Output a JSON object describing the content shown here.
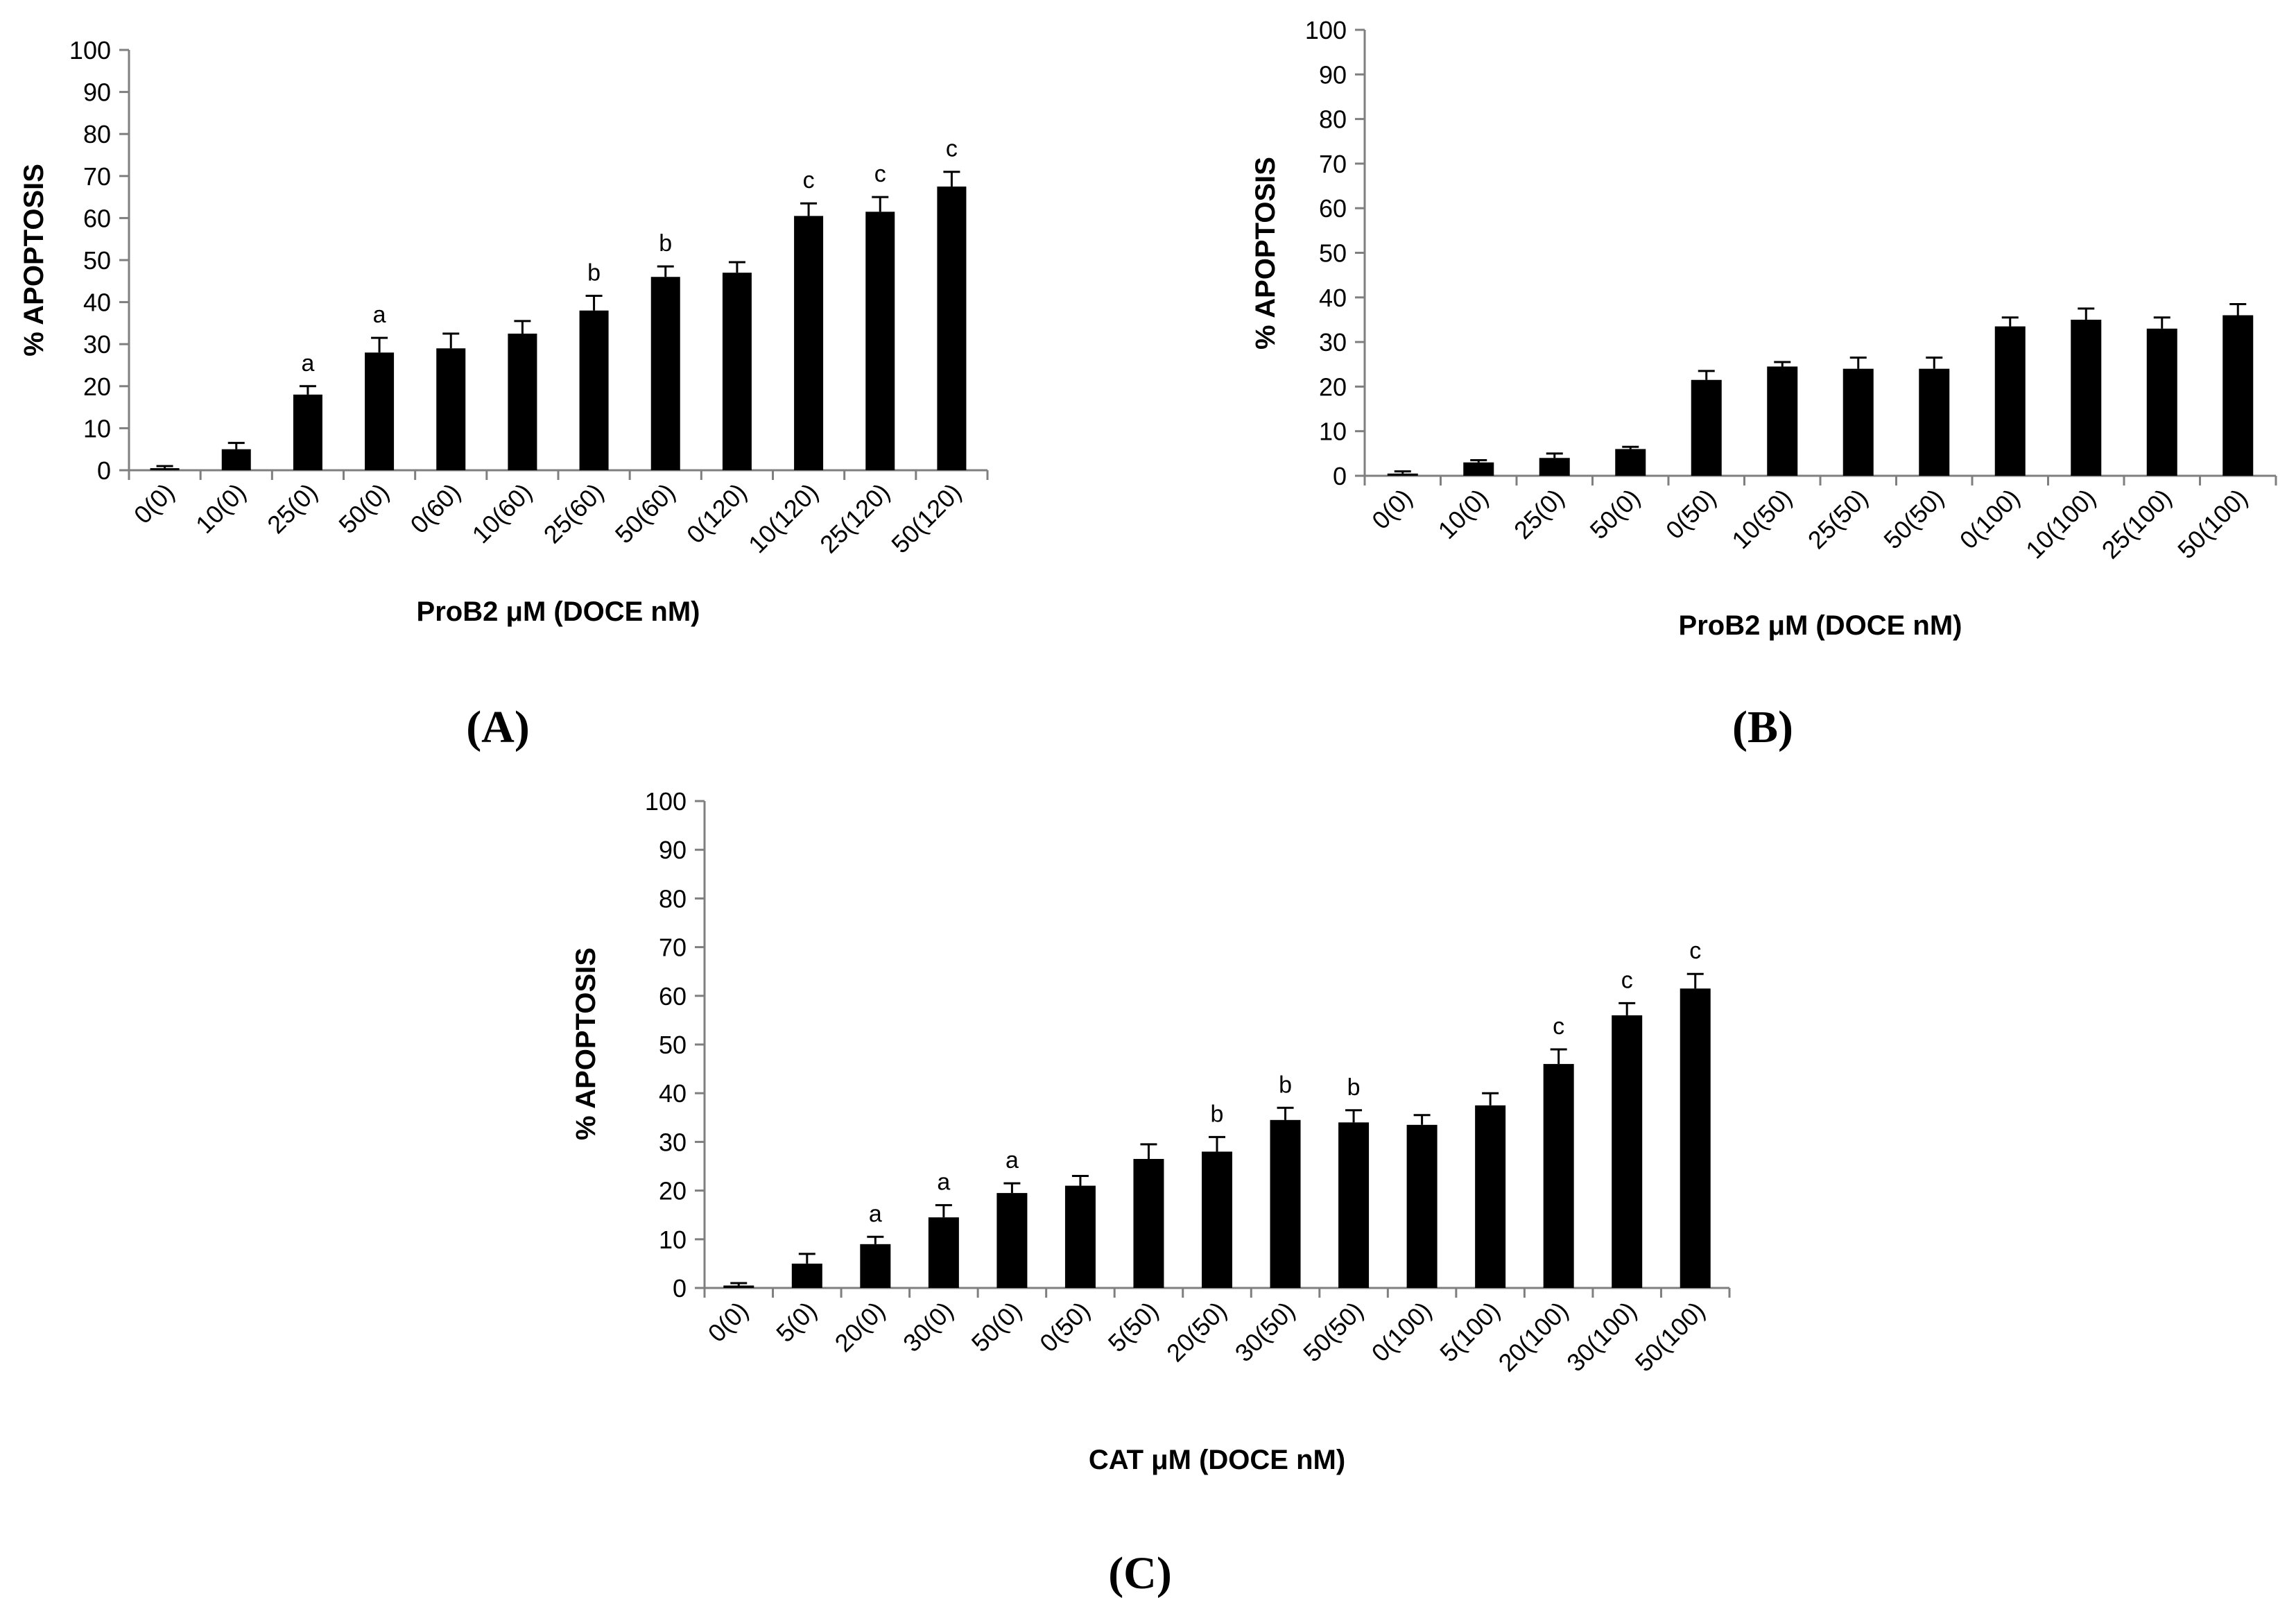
{
  "chart_data": [
    {
      "type": "bar",
      "panel_label": "(A)",
      "xlabel": "ProB2 μM (DOCE nM)",
      "ylabel": "% APOPTOSIS",
      "ylim": [
        0,
        100
      ],
      "yticks": [
        "0",
        "10",
        "20",
        "30",
        "40",
        "50",
        "60",
        "70",
        "80",
        "90",
        "100"
      ],
      "categories": [
        "0(0)",
        "10(0)",
        "25(0)",
        "50(0)",
        "0(60)",
        "10(60)",
        "25(60)",
        "50(60)",
        "0(120)",
        "10(120)",
        "25(120)",
        "50(120)"
      ],
      "values": [
        0.5,
        5,
        18,
        28,
        29,
        32.5,
        38,
        46,
        47,
        60.5,
        61.5,
        67.5
      ],
      "errors": [
        0.5,
        1.5,
        2,
        3.5,
        3.5,
        3,
        3.5,
        2.5,
        2.5,
        3,
        3.5,
        3.5
      ],
      "labels": [
        "",
        "",
        "a",
        "a",
        "",
        "",
        "b",
        "b",
        "",
        "c",
        "c",
        "c"
      ]
    },
    {
      "type": "bar",
      "panel_label": "(B)",
      "xlabel": "ProB2 μM (DOCE nM)",
      "ylabel": "% APOPTOSIS",
      "ylim": [
        0,
        100
      ],
      "yticks": [
        "0",
        "10",
        "20",
        "30",
        "40",
        "50",
        "60",
        "70",
        "80",
        "90",
        "100"
      ],
      "categories": [
        "0(0)",
        "10(0)",
        "25(0)",
        "50(0)",
        "0(50)",
        "10(50)",
        "25(50)",
        "50(50)",
        "0(100)",
        "10(100)",
        "25(100)",
        "50(100)"
      ],
      "values": [
        0.5,
        3,
        4,
        6,
        21.5,
        24.5,
        24,
        24,
        33.5,
        35,
        33,
        36
      ],
      "errors": [
        0.5,
        0.5,
        1,
        0.5,
        2,
        1,
        2.5,
        2.5,
        2,
        2.5,
        2.5,
        2.5
      ],
      "labels": [
        "",
        "",
        "",
        "",
        "",
        "",
        "",
        "",
        "",
        "",
        "",
        ""
      ]
    },
    {
      "type": "bar",
      "panel_label": "(C)",
      "xlabel": "CAT μM (DOCE nM)",
      "ylabel": "% APOPTOSIS",
      "ylim": [
        0,
        100
      ],
      "yticks": [
        "0",
        "10",
        "20",
        "30",
        "40",
        "50",
        "60",
        "70",
        "80",
        "90",
        "100"
      ],
      "categories": [
        "0(0)",
        "5(0)",
        "20(0)",
        "30(0)",
        "50(0)",
        "0(50)",
        "5(50)",
        "20(50)",
        "30(50)",
        "50(50)",
        "0(100)",
        "5(100)",
        "20(100)",
        "30(100)",
        "50(100)"
      ],
      "values": [
        0.5,
        5,
        9,
        14.5,
        19.5,
        21,
        26.5,
        28,
        34.5,
        34,
        33.5,
        37.5,
        46,
        56,
        61.5
      ],
      "errors": [
        0.5,
        2,
        1.5,
        2.5,
        2,
        2,
        3,
        3,
        2.5,
        2.5,
        2,
        2.5,
        3,
        2.5,
        3
      ],
      "labels": [
        "",
        "",
        "a",
        "a",
        "a",
        "",
        "",
        "b",
        "b",
        "b",
        "",
        "",
        "c",
        "c",
        "c"
      ]
    }
  ]
}
